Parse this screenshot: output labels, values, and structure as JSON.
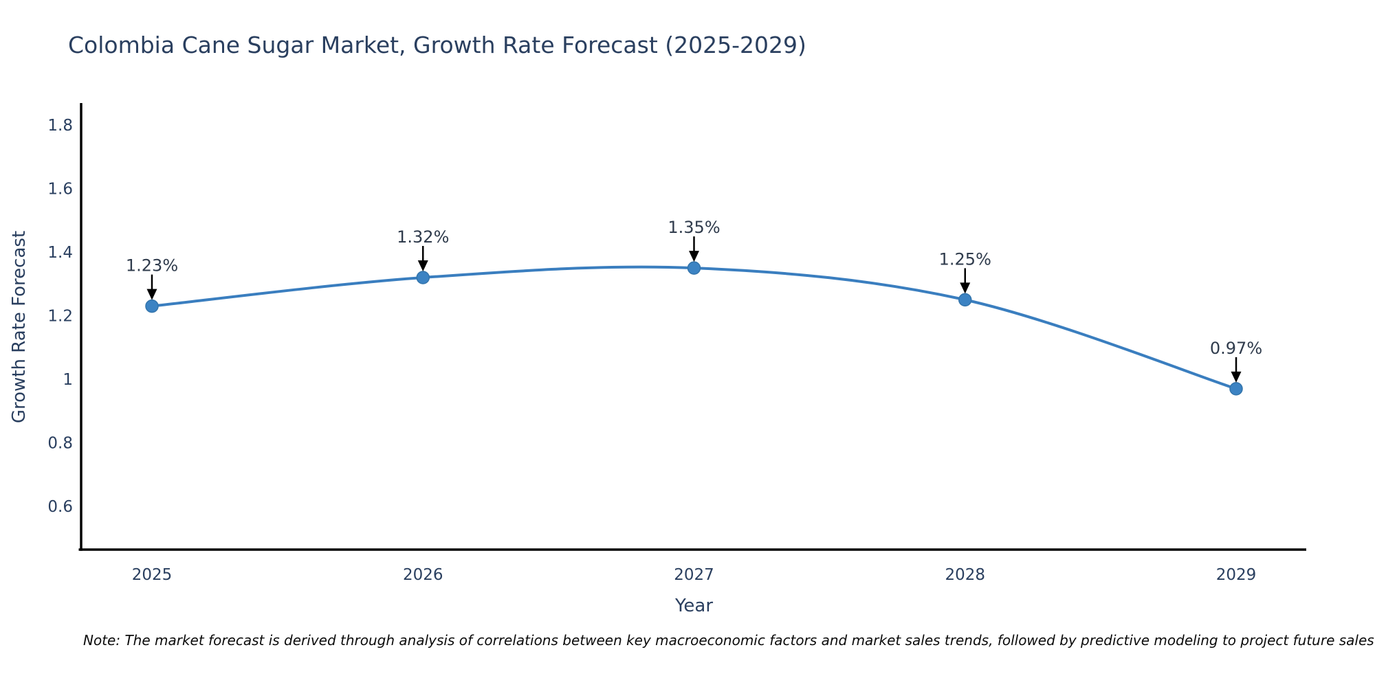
{
  "page": {
    "title": "Colombia Cane Sugar Market, Growth Rate Forecast (2025-2029)"
  },
  "chart_data": {
    "type": "line",
    "title": "Colombia Cane Sugar Market, Growth Rate Forecast (2025-2029)",
    "xlabel": "Year",
    "ylabel": "Growth Rate Forecast",
    "categories": [
      "2025",
      "2026",
      "2027",
      "2028",
      "2029"
    ],
    "series": [
      {
        "name": "Growth Rate Forecast",
        "values": [
          1.23,
          1.32,
          1.35,
          1.25,
          0.97
        ]
      }
    ],
    "point_labels": [
      "1.23%",
      "1.32%",
      "1.35%",
      "1.25%",
      "0.97%"
    ],
    "yticks": [
      {
        "value": 0.6,
        "label": "0.6"
      },
      {
        "value": 0.8,
        "label": "0.8"
      },
      {
        "value": 1.0,
        "label": "1"
      },
      {
        "value": 1.2,
        "label": "1.2"
      },
      {
        "value": 1.4,
        "label": "1.4"
      },
      {
        "value": 1.6,
        "label": "1.6"
      },
      {
        "value": 1.8,
        "label": "1.8"
      }
    ],
    "ylim": [
      0.45,
      1.85
    ],
    "grid": false,
    "legend": false,
    "colors": {
      "line": "#3a7ebf",
      "marker_fill": "#3c83c3",
      "marker_edge": "#3374ab",
      "arrow": "#000000",
      "axis": "#000000",
      "axis_text": "#2a3f5f",
      "annotation_text": "#2f3b4c",
      "note_text": "#0b0b0b",
      "background": "#ffffff"
    }
  },
  "note": {
    "text": "Note: The market forecast is derived through analysis of correlations between key macroeconomic factors and market sales trends, followed by predictive modeling to project future sales"
  }
}
